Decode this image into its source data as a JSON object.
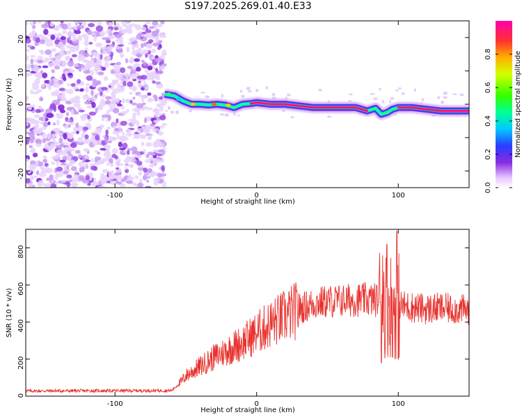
{
  "title": "S197.2025.269.01.40.E33",
  "colors": {
    "line": "#e8322e",
    "axis": "#000000"
  },
  "chart_data": [
    {
      "type": "heatmap",
      "title": "S197.2025.269.01.40.E33",
      "xlabel": "Height of straight line (km)",
      "ylabel": "Frequency (Hz)",
      "xlim": [
        -163,
        150
      ],
      "ylim": [
        -25,
        25
      ],
      "xticks": [
        -100,
        0,
        100
      ],
      "yticks": [
        -20,
        -10,
        0,
        10,
        20
      ],
      "colorbar": {
        "label": "Normalized spectral amplitude",
        "range": [
          0,
          1
        ],
        "ticks": [
          "0.0",
          "0.2",
          "0.4",
          "0.6",
          "0.8"
        ]
      },
      "noise_region_x": [
        -163,
        -65
      ],
      "ridge": {
        "x": [
          -65,
          -58,
          -52,
          -46,
          -40,
          -34,
          -28,
          -22,
          -16,
          -10,
          -4,
          0,
          10,
          20,
          30,
          40,
          50,
          60,
          70,
          78,
          84,
          88,
          92,
          96,
          100,
          110,
          120,
          130,
          140,
          150
        ],
        "f": [
          3,
          2.5,
          1,
          0,
          0,
          -0.2,
          0,
          -0.3,
          -1,
          0,
          0.2,
          0.5,
          0,
          0,
          -0.5,
          -1,
          -1,
          -1,
          -1,
          -2,
          -1.2,
          -3,
          -2.5,
          -1.5,
          -1,
          -1,
          -1.5,
          -2,
          -2,
          -2
        ],
        "strength": [
          0.3,
          0.4,
          0.5,
          0.55,
          0.6,
          0.62,
          0.65,
          0.6,
          0.6,
          0.7,
          0.8,
          0.95,
          0.95,
          0.95,
          0.9,
          0.95,
          0.95,
          0.95,
          0.95,
          0.9,
          0.6,
          0.3,
          0.8,
          0.7,
          0.9,
          0.95,
          0.95,
          0.95,
          0.95,
          0.9
        ]
      }
    },
    {
      "type": "line",
      "xlabel": "Height of straight line (km)",
      "ylabel": "SNR (10 * v/v)",
      "xlim": [
        -163,
        150
      ],
      "ylim": [
        0,
        900
      ],
      "xticks": [
        -100,
        0,
        100
      ],
      "yticks": [
        0,
        200,
        400,
        600,
        800
      ],
      "series": [
        {
          "name": "SNR",
          "trend_x": [
            -163,
            -60,
            -53,
            -50,
            -40,
            -30,
            -20,
            -10,
            0,
            10,
            20,
            30,
            40,
            50,
            60,
            70,
            80,
            88,
            92,
            100,
            110,
            120,
            130,
            140,
            150
          ],
          "trend_y": [
            28,
            30,
            80,
            110,
            160,
            210,
            250,
            290,
            340,
            390,
            430,
            470,
            500,
            510,
            515,
            520,
            520,
            520,
            500,
            490,
            480,
            470,
            475,
            470,
            465
          ],
          "spikes": [
            {
              "x": 88,
              "y": 180
            },
            {
              "x": 89,
              "y": 760
            },
            {
              "x": 92,
              "y": 820
            },
            {
              "x": 96,
              "y": 210
            },
            {
              "x": 99,
              "y": 890
            },
            {
              "x": 100,
              "y": 200
            }
          ]
        }
      ]
    }
  ]
}
